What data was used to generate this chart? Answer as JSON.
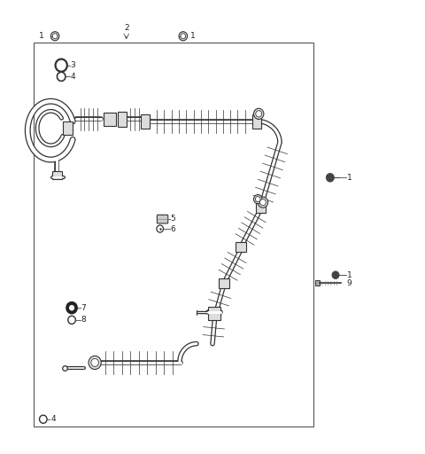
{
  "bg_color": "#ffffff",
  "border": [
    0.075,
    0.055,
    0.665,
    0.855
  ],
  "lc": "#444444",
  "tc": "#222222",
  "fs": 6.5,
  "hose_lw": 3.5,
  "hose_color": "#555555",
  "outline_color": "#333333"
}
